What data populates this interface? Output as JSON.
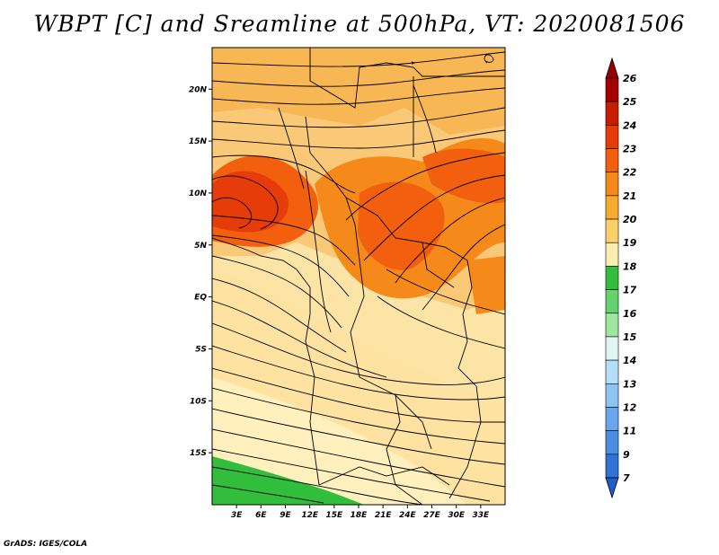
{
  "title": "WBPT [C] and Sreamline at 500hPa, VT: 2020081506",
  "footer": "GrADS: IGES/COLA",
  "map": {
    "lat_labels": [
      "20N",
      "15N",
      "10N",
      "5N",
      "EQ",
      "5S",
      "10S",
      "15S"
    ],
    "lon_labels": [
      "3E",
      "6E",
      "9E",
      "12E",
      "15E",
      "18E",
      "21E",
      "24E",
      "27E",
      "30E",
      "33E"
    ],
    "lat_values": [
      20,
      15,
      10,
      5,
      0,
      -5,
      -10,
      -15
    ],
    "lon_values": [
      3,
      6,
      9,
      12,
      15,
      18,
      21,
      24,
      27,
      30,
      33
    ],
    "lon_range": [
      0,
      36
    ],
    "lat_range": [
      -20,
      24
    ]
  },
  "colorbar": {
    "levels": [
      "26",
      "25",
      "24",
      "23",
      "22",
      "21",
      "20",
      "19",
      "18",
      "17",
      "16",
      "15",
      "14",
      "13",
      "12",
      "11",
      "9",
      "7"
    ],
    "colors": [
      "#a50000",
      "#c81e00",
      "#e63c0a",
      "#f2600f",
      "#f5891a",
      "#f7ab2e",
      "#fbd06a",
      "#fdeeb0",
      "#32be3c",
      "#66d26e",
      "#9fe6a0",
      "#dff5f2",
      "#b4def9",
      "#8ec4f2",
      "#6ba6ea",
      "#4d8ee2",
      "#2f73d6"
    ],
    "top_color": "#960000",
    "bottom_color": "#1e5ec8"
  }
}
